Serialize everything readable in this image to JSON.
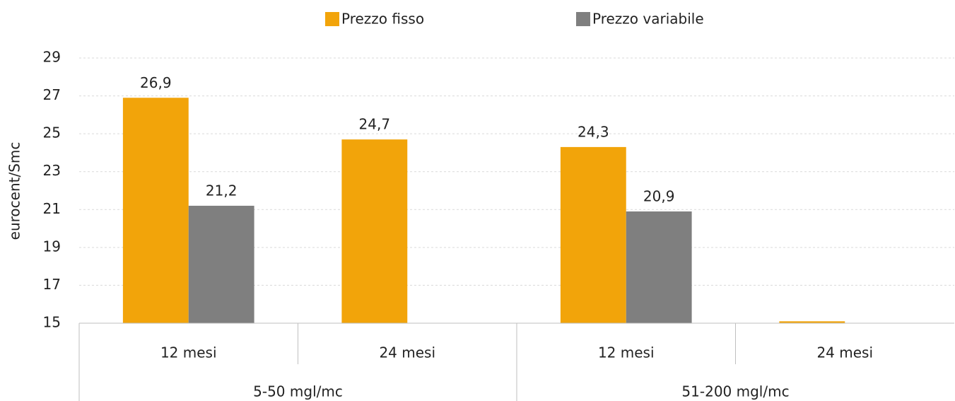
{
  "chart_data": {
    "type": "bar",
    "y_label": "eurocent/Smc",
    "categories": [
      "12 mesi",
      "24 mesi",
      "12 mesi",
      "24 mesi"
    ],
    "groups": [
      "5-50 mgl/mc",
      "51-200 mgl/mc"
    ],
    "series": [
      {
        "name": "Prezzo fisso",
        "color": "#f2a40a",
        "values": [
          26.9,
          24.7,
          24.3,
          15.1
        ],
        "value_labels": [
          "26,9",
          "24,7",
          "24,3",
          null
        ]
      },
      {
        "name": "Prezzo variabile",
        "color": "#7f7f7f",
        "values": [
          21.2,
          null,
          20.9,
          null
        ],
        "value_labels": [
          "21,2",
          null,
          "20,9",
          null
        ]
      }
    ],
    "ylim": [
      15,
      29
    ],
    "yticks": [
      15,
      17,
      19,
      21,
      23,
      25,
      27,
      29
    ],
    "grid": true,
    "legend": "top"
  }
}
